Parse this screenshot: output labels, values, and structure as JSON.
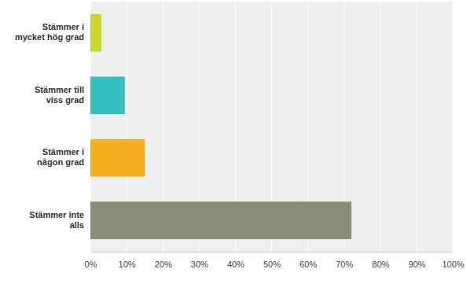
{
  "chart_data": {
    "type": "bar",
    "orientation": "horizontal",
    "categories": [
      "Stämmer i mycket hög grad",
      "Stämmer till viss grad",
      "Stämmer i någon grad",
      "Stämmer inte alls"
    ],
    "values": [
      3,
      9.5,
      15,
      72
    ],
    "colors": [
      "#cbd42c",
      "#35bfc1",
      "#f7af1f",
      "#8b8c7a"
    ],
    "xlim": [
      0,
      100
    ],
    "xticks": [
      {
        "value": 0,
        "label": "0%"
      },
      {
        "value": 10,
        "label": "10%"
      },
      {
        "value": 20,
        "label": "20%"
      },
      {
        "value": 30,
        "label": "30%"
      },
      {
        "value": 40,
        "label": "40%"
      },
      {
        "value": 50,
        "label": "50%"
      },
      {
        "value": 60,
        "label": "60%"
      },
      {
        "value": 70,
        "label": "70%"
      },
      {
        "value": 80,
        "label": "80%"
      },
      {
        "value": 90,
        "label": "90%"
      },
      {
        "value": 100,
        "label": "100%"
      }
    ],
    "grid": true
  }
}
